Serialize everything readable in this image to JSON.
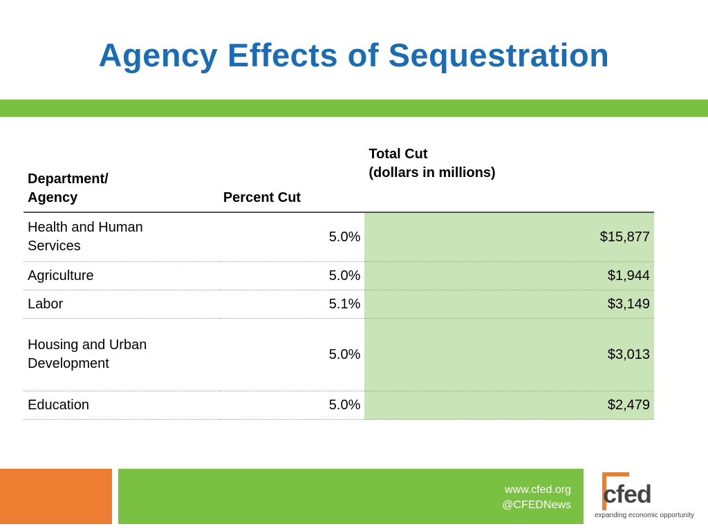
{
  "slide": {
    "title": "Agency Effects of Sequestration"
  },
  "table": {
    "headers": {
      "department_line1": "Department/",
      "department_line2": "Agency",
      "percent": "Percent Cut",
      "total_line1": "Total Cut",
      "total_line2": "(dollars in millions)"
    },
    "rows": [
      {
        "dept_line1": "Health and Human",
        "dept_line2": "Services",
        "percent": "5.0%",
        "total": "$15,877"
      },
      {
        "dept_line1": "Agriculture",
        "dept_line2": "",
        "percent": "5.0%",
        "total": "$1,944"
      },
      {
        "dept_line1": "Labor",
        "dept_line2": "",
        "percent": "5.1%",
        "total": "$3,149"
      },
      {
        "dept_line1": "Housing and Urban",
        "dept_line2": "Development",
        "percent": "5.0%",
        "total": "$3,013"
      },
      {
        "dept_line1": "Education",
        "dept_line2": "",
        "percent": "5.0%",
        "total": "$2,479"
      }
    ]
  },
  "footer": {
    "website": "www.cfed.org",
    "twitter": "@CFEDNews"
  },
  "logo": {
    "wordmark": "cfed",
    "tagline": "expanding economic opportunity"
  },
  "colors": {
    "title": "#1a6db5",
    "green": "#7ac143",
    "orange": "#ed7d31",
    "total_cell": "#c9e4b6"
  }
}
